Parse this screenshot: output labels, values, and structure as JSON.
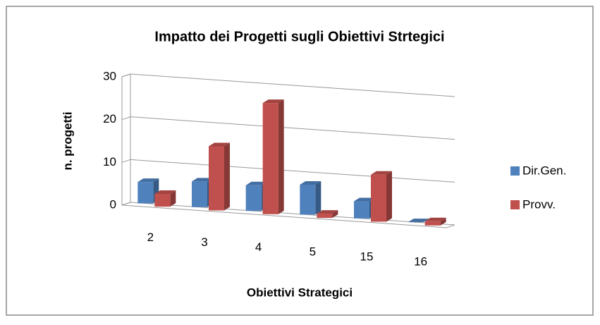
{
  "chart_data": {
    "type": "bar3d",
    "title": "Impatto dei Progetti sugli Obiettivi Strtegici",
    "x_label": "Obiettivi  Strategici",
    "y_label": "n. progetti",
    "categories": [
      "2",
      "3",
      "4",
      "5",
      "15",
      "16"
    ],
    "series": [
      {
        "name": "Dir.Gen.",
        "color": "#4f81bd",
        "values": [
          5,
          6,
          6,
          7,
          4,
          0
        ]
      },
      {
        "name": "Provv.",
        "color": "#c0504d",
        "values": [
          3,
          15,
          26,
          1,
          11,
          1
        ]
      }
    ],
    "ylim": [
      0,
      30
    ],
    "yticks": [
      0,
      10,
      20,
      30
    ],
    "grid": true,
    "legend": "right"
  }
}
